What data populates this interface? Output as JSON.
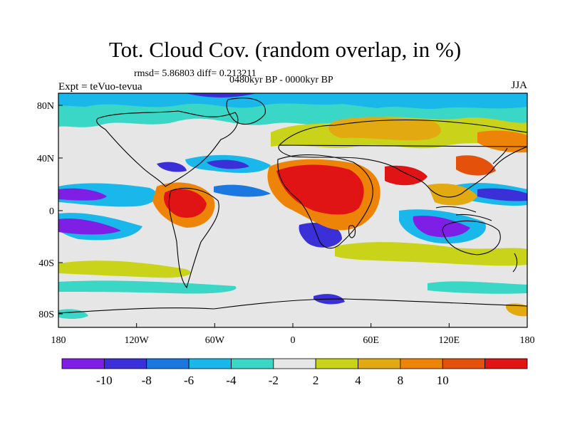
{
  "title": "Tot. Cloud Cov. (random overlap, in %)",
  "stats": "rmsd= 5.86803 diff= 0.213211",
  "experiment": "Expt = teVuo-tevua",
  "period": "0480kyr BP - 0000kyr BP",
  "season": "JJA",
  "axes": {
    "lon_ticks": [
      "180",
      "120W",
      "60W",
      "0",
      "60E",
      "120E",
      "180"
    ],
    "lat_ticks": [
      "80N",
      "40N",
      "0",
      "40S",
      "80S"
    ]
  },
  "colorbar": {
    "labels": [
      "-10",
      "-8",
      "-6",
      "-4",
      "-2",
      "2",
      "4",
      "8",
      "10"
    ],
    "colors": [
      "#7f1fe6",
      "#3b2fd8",
      "#1a78e0",
      "#19b7ea",
      "#3ad6c6",
      "#e6e6e6",
      "#c9d31a",
      "#e2aa10",
      "#ee8407",
      "#e3510a",
      "#e01414"
    ]
  },
  "palette": {
    "land_outline": "#000000",
    "background": "#e6e6e6"
  }
}
